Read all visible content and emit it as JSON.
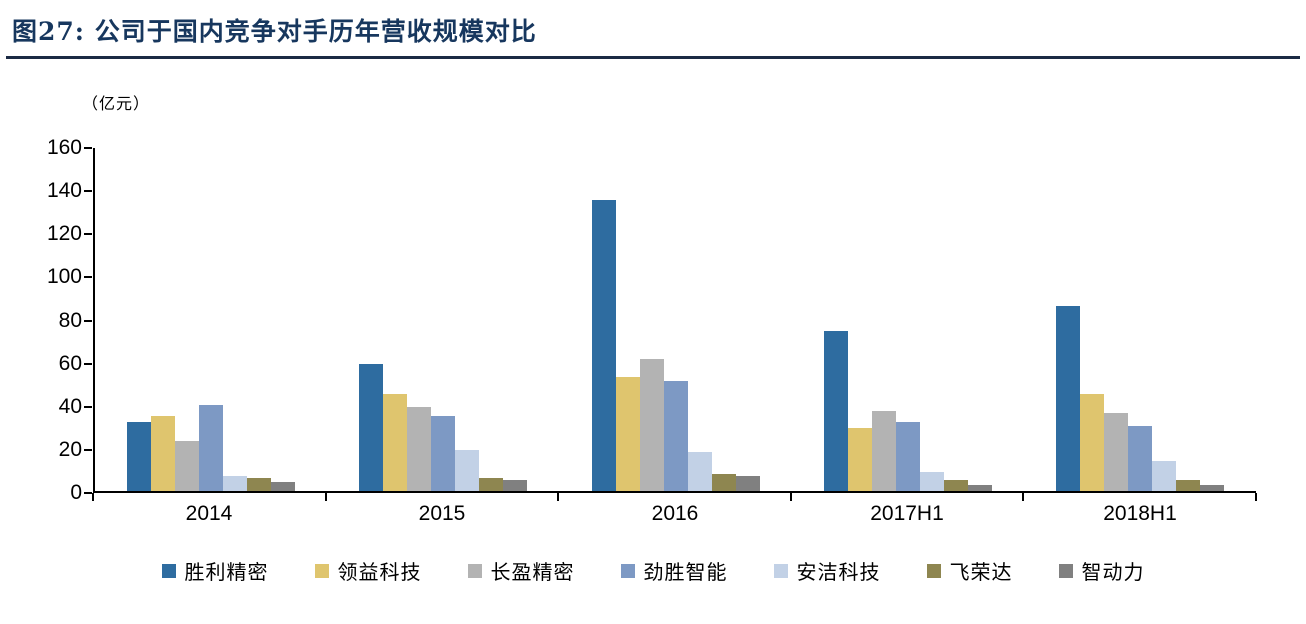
{
  "header": {
    "title": "图27:  公司于国内竞争对手历年营收规模对比"
  },
  "colors": {
    "title_navy": "#17375E",
    "axis_black": "#000000"
  },
  "chart_data": {
    "type": "bar",
    "title": "图27: 公司于国内竞争对手历年营收规模对比",
    "unit_label": "（亿元）",
    "xlabel": "",
    "ylabel": "（亿元）",
    "categories": [
      "2014",
      "2015",
      "2016",
      "2017H1",
      "2018H1"
    ],
    "series": [
      {
        "name": "胜利精密",
        "color": "#2E6CA0",
        "values": [
          32,
          59,
          135,
          74,
          86
        ]
      },
      {
        "name": "领益科技",
        "color": "#DFC56E",
        "values": [
          35,
          45,
          53,
          29,
          45
        ]
      },
      {
        "name": "长盈精密",
        "color": "#B3B3B3",
        "values": [
          23,
          39,
          61,
          37,
          36
        ]
      },
      {
        "name": "劲胜智能",
        "color": "#7D99C4",
        "values": [
          40,
          35,
          51,
          32,
          30
        ]
      },
      {
        "name": "安洁科技",
        "color": "#C2D1E6",
        "values": [
          7,
          19,
          18,
          9,
          14
        ]
      },
      {
        "name": "飞荣达",
        "color": "#8E8650",
        "values": [
          6,
          6,
          8,
          5,
          5
        ]
      },
      {
        "name": "智动力",
        "color": "#808080",
        "values": [
          4,
          5,
          7,
          3,
          3
        ]
      }
    ],
    "ylim": [
      0,
      160
    ],
    "ytick_step": 20,
    "grid": false,
    "legend_position": "bottom"
  }
}
